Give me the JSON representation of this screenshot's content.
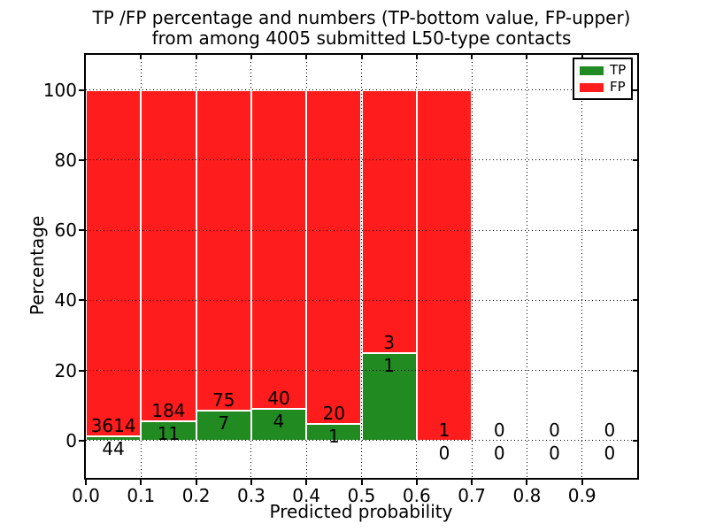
{
  "title": {
    "line1": "TP /FP percentage and numbers (TP-bottom value, FP-upper)",
    "line2": "from among 4005 submitted L50-type contacts"
  },
  "colors": {
    "tp": "#218a21",
    "fp": "#ff1c1c",
    "bar_edge": "#ffffff",
    "grid": "#000000",
    "background": "#ffffff",
    "text": "#000000"
  },
  "legend": {
    "position": "upper right",
    "entries": [
      {
        "label": "TP",
        "color": "#218a21"
      },
      {
        "label": "FP",
        "color": "#ff1c1c"
      }
    ]
  },
  "chart_data": {
    "type": "bar",
    "stacked": true,
    "title": "TP /FP percentage and numbers (TP-bottom value, FP-upper)\nfrom among 4005 submitted L50-type contacts",
    "total_contacts": 4005,
    "xlabel": "Predicted probability",
    "ylabel": "Percentage",
    "xlim": [
      0.0,
      1.0
    ],
    "ylim": [
      -10.6,
      110
    ],
    "grid": true,
    "legend_position": "upper right",
    "series": [
      {
        "name": "TP",
        "color": "#218a21"
      },
      {
        "name": "FP",
        "color": "#ff1c1c"
      }
    ],
    "x_ticks": [
      {
        "value": 0.0,
        "label": "0.0"
      },
      {
        "value": 0.1,
        "label": "0.1"
      },
      {
        "value": 0.2,
        "label": "0.2"
      },
      {
        "value": 0.3,
        "label": "0.3"
      },
      {
        "value": 0.4,
        "label": "0.4"
      },
      {
        "value": 0.5,
        "label": "0.5"
      },
      {
        "value": 0.6,
        "label": "0.6"
      },
      {
        "value": 0.7,
        "label": "0.7"
      },
      {
        "value": 0.8,
        "label": "0.8"
      },
      {
        "value": 0.9,
        "label": "0.9"
      }
    ],
    "y_ticks": [
      {
        "value": 0,
        "label": "0"
      },
      {
        "value": 20,
        "label": "20"
      },
      {
        "value": 40,
        "label": "40"
      },
      {
        "value": 60,
        "label": "60"
      },
      {
        "value": 80,
        "label": "80"
      },
      {
        "value": 100,
        "label": "100"
      }
    ],
    "bins": [
      {
        "range": [
          0.0,
          0.1
        ],
        "tp_count": 44,
        "fp_count": 3614,
        "tp_pct": 1.2,
        "fp_pct": 98.8,
        "tp_label": "44",
        "fp_label": "3614"
      },
      {
        "range": [
          0.1,
          0.2
        ],
        "tp_count": 11,
        "fp_count": 184,
        "tp_pct": 5.6,
        "fp_pct": 94.4,
        "tp_label": "11",
        "fp_label": "184"
      },
      {
        "range": [
          0.2,
          0.3
        ],
        "tp_count": 7,
        "fp_count": 75,
        "tp_pct": 8.5,
        "fp_pct": 91.5,
        "tp_label": "7",
        "fp_label": "75"
      },
      {
        "range": [
          0.3,
          0.4
        ],
        "tp_count": 4,
        "fp_count": 40,
        "tp_pct": 9.1,
        "fp_pct": 90.9,
        "tp_label": "4",
        "fp_label": "40"
      },
      {
        "range": [
          0.4,
          0.5
        ],
        "tp_count": 1,
        "fp_count": 20,
        "tp_pct": 4.8,
        "fp_pct": 95.2,
        "tp_label": "1",
        "fp_label": "20"
      },
      {
        "range": [
          0.5,
          0.6
        ],
        "tp_count": 1,
        "fp_count": 3,
        "tp_pct": 25.0,
        "fp_pct": 75.0,
        "tp_label": "1",
        "fp_label": "3"
      },
      {
        "range": [
          0.6,
          0.7
        ],
        "tp_count": 0,
        "fp_count": 1,
        "tp_pct": 0.0,
        "fp_pct": 100.0,
        "tp_label": "0",
        "fp_label": "1"
      },
      {
        "range": [
          0.7,
          0.8
        ],
        "tp_count": 0,
        "fp_count": 0,
        "tp_pct": 0.0,
        "fp_pct": 0.0,
        "tp_label": "0",
        "fp_label": "0"
      },
      {
        "range": [
          0.8,
          0.9
        ],
        "tp_count": 0,
        "fp_count": 0,
        "tp_pct": 0.0,
        "fp_pct": 0.0,
        "tp_label": "0",
        "fp_label": "0"
      },
      {
        "range": [
          0.9,
          1.0
        ],
        "tp_count": 0,
        "fp_count": 0,
        "tp_pct": 0.0,
        "fp_pct": 0.0,
        "tp_label": "0",
        "fp_label": "0"
      }
    ]
  }
}
